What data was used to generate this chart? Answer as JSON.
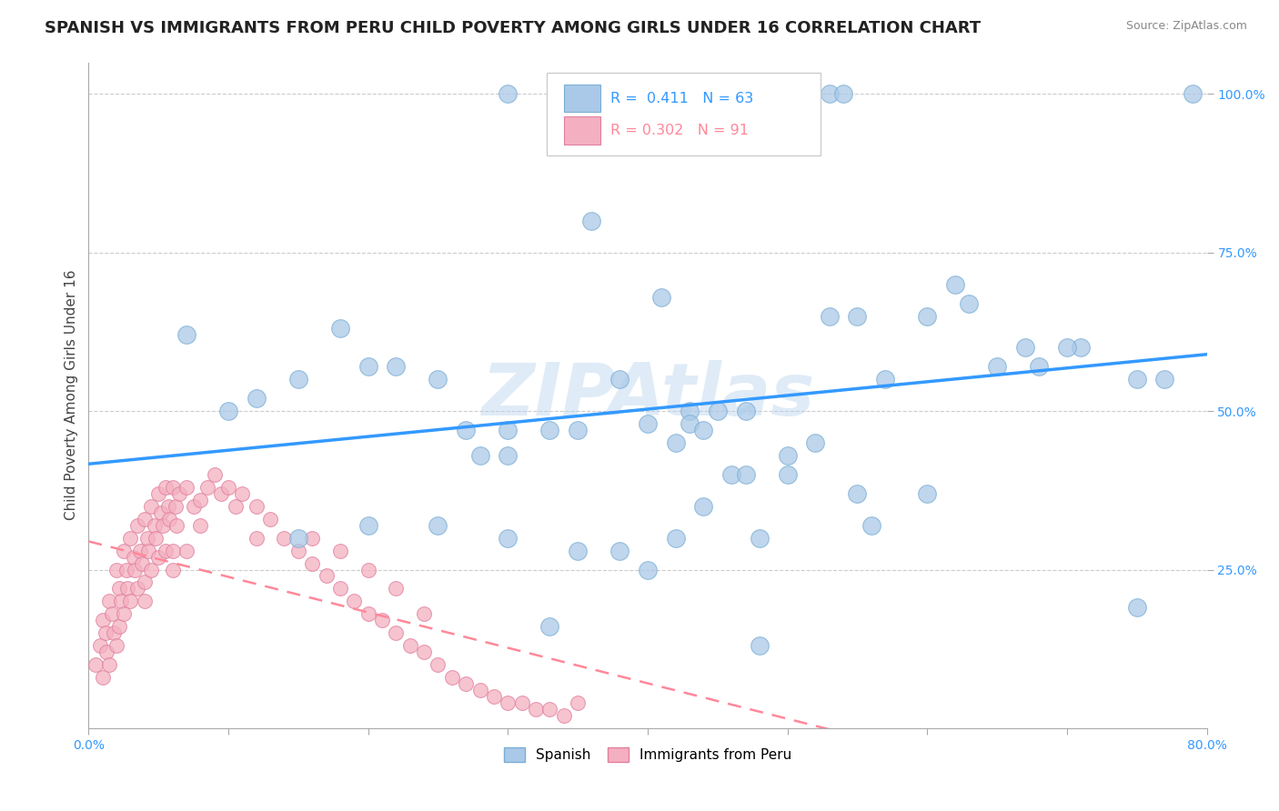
{
  "title": "SPANISH VS IMMIGRANTS FROM PERU CHILD POVERTY AMONG GIRLS UNDER 16 CORRELATION CHART",
  "source": "Source: ZipAtlas.com",
  "ylabel": "Child Poverty Among Girls Under 16",
  "xlim": [
    0.0,
    0.8
  ],
  "ylim": [
    0.0,
    1.05
  ],
  "legend_text1": "R =  0.411   N = 63",
  "legend_text2": "R = 0.302   N = 91",
  "legend_label1": "Spanish",
  "legend_label2": "Immigrants from Peru",
  "watermark": "ZIPAtlas",
  "blue_color": "#aac9e8",
  "blue_edge_color": "#7aaed4",
  "blue_line_color": "#3399ff",
  "pink_color": "#f4b0c0",
  "pink_edge_color": "#e080a0",
  "pink_line_color": "#ff8899",
  "ytick_color": "#3399ff",
  "xtick_color": "#3399ff",
  "grid_color": "#cccccc",
  "title_fontsize": 13,
  "ylabel_fontsize": 11,
  "tick_fontsize": 10,
  "blue_scatter_x": [
    0.07,
    0.1,
    0.12,
    0.15,
    0.18,
    0.2,
    0.22,
    0.25,
    0.27,
    0.28,
    0.3,
    0.3,
    0.33,
    0.35,
    0.38,
    0.4,
    0.42,
    0.43,
    0.43,
    0.45,
    0.47,
    0.5,
    0.52,
    0.53,
    0.55,
    0.38,
    0.42,
    0.48,
    0.56,
    0.6,
    0.62,
    0.65,
    0.68,
    0.71,
    0.75,
    0.77,
    0.35,
    0.4,
    0.44,
    0.46,
    0.47,
    0.5,
    0.55,
    0.57,
    0.6,
    0.63,
    0.67,
    0.7,
    0.15,
    0.2,
    0.25,
    0.3,
    0.3,
    0.51,
    0.53,
    0.54,
    0.79,
    0.36,
    0.41,
    0.44,
    0.75,
    0.33,
    0.48
  ],
  "blue_scatter_y": [
    0.62,
    0.5,
    0.52,
    0.55,
    0.63,
    0.57,
    0.57,
    0.55,
    0.47,
    0.43,
    0.43,
    0.47,
    0.47,
    0.47,
    0.55,
    0.48,
    0.45,
    0.5,
    0.48,
    0.5,
    0.5,
    0.4,
    0.45,
    0.65,
    0.65,
    0.28,
    0.3,
    0.3,
    0.32,
    0.65,
    0.7,
    0.57,
    0.57,
    0.6,
    0.55,
    0.55,
    0.28,
    0.25,
    0.35,
    0.4,
    0.4,
    0.43,
    0.37,
    0.55,
    0.37,
    0.67,
    0.6,
    0.6,
    0.3,
    0.32,
    0.32,
    0.3,
    1.0,
    1.0,
    1.0,
    1.0,
    1.0,
    0.8,
    0.68,
    0.47,
    0.19,
    0.16,
    0.13
  ],
  "pink_scatter_x": [
    0.005,
    0.008,
    0.01,
    0.01,
    0.012,
    0.013,
    0.015,
    0.015,
    0.017,
    0.018,
    0.02,
    0.02,
    0.022,
    0.022,
    0.023,
    0.025,
    0.025,
    0.027,
    0.028,
    0.03,
    0.03,
    0.032,
    0.033,
    0.035,
    0.035,
    0.037,
    0.038,
    0.04,
    0.04,
    0.042,
    0.043,
    0.045,
    0.045,
    0.047,
    0.048,
    0.05,
    0.05,
    0.052,
    0.053,
    0.055,
    0.055,
    0.057,
    0.058,
    0.06,
    0.06,
    0.062,
    0.063,
    0.065,
    0.07,
    0.07,
    0.075,
    0.08,
    0.085,
    0.09,
    0.095,
    0.1,
    0.105,
    0.11,
    0.12,
    0.13,
    0.14,
    0.15,
    0.16,
    0.17,
    0.18,
    0.19,
    0.2,
    0.21,
    0.22,
    0.23,
    0.24,
    0.25,
    0.26,
    0.27,
    0.28,
    0.29,
    0.3,
    0.31,
    0.32,
    0.33,
    0.34,
    0.35,
    0.16,
    0.18,
    0.2,
    0.22,
    0.24,
    0.08,
    0.12,
    0.06,
    0.04
  ],
  "pink_scatter_y": [
    0.1,
    0.13,
    0.17,
    0.08,
    0.15,
    0.12,
    0.2,
    0.1,
    0.18,
    0.15,
    0.25,
    0.13,
    0.22,
    0.16,
    0.2,
    0.28,
    0.18,
    0.25,
    0.22,
    0.3,
    0.2,
    0.27,
    0.25,
    0.32,
    0.22,
    0.28,
    0.26,
    0.33,
    0.23,
    0.3,
    0.28,
    0.35,
    0.25,
    0.32,
    0.3,
    0.37,
    0.27,
    0.34,
    0.32,
    0.38,
    0.28,
    0.35,
    0.33,
    0.38,
    0.28,
    0.35,
    0.32,
    0.37,
    0.38,
    0.28,
    0.35,
    0.36,
    0.38,
    0.4,
    0.37,
    0.38,
    0.35,
    0.37,
    0.35,
    0.33,
    0.3,
    0.28,
    0.26,
    0.24,
    0.22,
    0.2,
    0.18,
    0.17,
    0.15,
    0.13,
    0.12,
    0.1,
    0.08,
    0.07,
    0.06,
    0.05,
    0.04,
    0.04,
    0.03,
    0.03,
    0.02,
    0.04,
    0.3,
    0.28,
    0.25,
    0.22,
    0.18,
    0.32,
    0.3,
    0.25,
    0.2
  ]
}
